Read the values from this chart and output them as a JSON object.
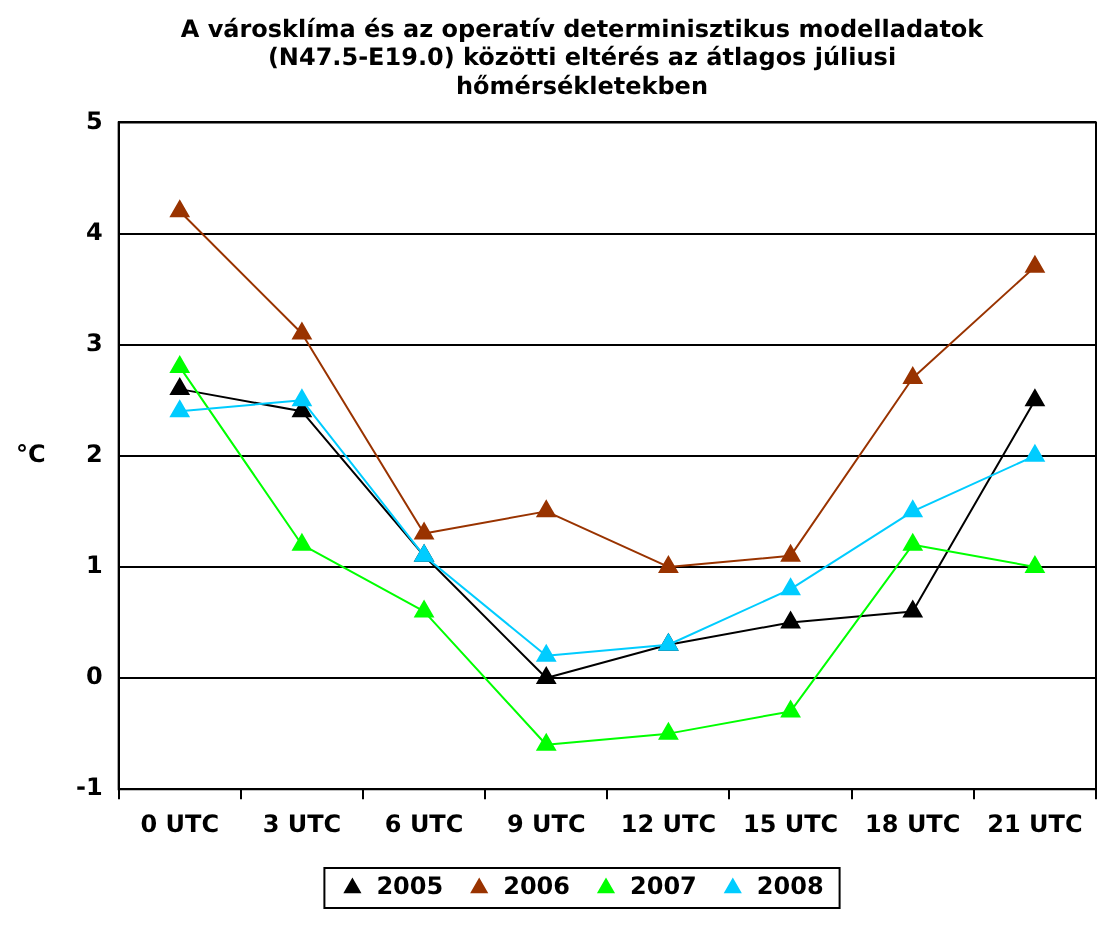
{
  "chart_data": {
    "type": "line",
    "title": "A városklíma és az operatív determinisztikus modelladatok (N47.5-E19.0) közötti eltérés az átlagos júliusi hőmérsékletekben",
    "ylabel": "°C",
    "categories": [
      "0 UTC",
      "3 UTC",
      "6 UTC",
      "9 UTC",
      "12 UTC",
      "15 UTC",
      "18 UTC",
      "21 UTC"
    ],
    "series": [
      {
        "name": "2005",
        "color": "#000000",
        "values": [
          2.6,
          2.4,
          1.1,
          0,
          0.3,
          0.5,
          0.6,
          2.5
        ]
      },
      {
        "name": "2006",
        "color": "#993300",
        "values": [
          4.2,
          3.1,
          1.3,
          1.5,
          1.0,
          1.1,
          2.7,
          3.7
        ]
      },
      {
        "name": "2007",
        "color": "#00ff00",
        "values": [
          2.8,
          1.2,
          0.6,
          -0.6,
          -0.5,
          -0.3,
          1.2,
          1.0
        ]
      },
      {
        "name": "2008",
        "color": "#00ccff",
        "values": [
          2.4,
          2.5,
          1.1,
          0.2,
          0.3,
          0.8,
          1.5,
          2.0
        ]
      }
    ],
    "ylim": [
      -1,
      5
    ],
    "yticks": [
      -1,
      0,
      1,
      2,
      3,
      4,
      5
    ],
    "grid": "y",
    "legend": "bottom",
    "marker": "triangle",
    "line_style": "solid"
  }
}
